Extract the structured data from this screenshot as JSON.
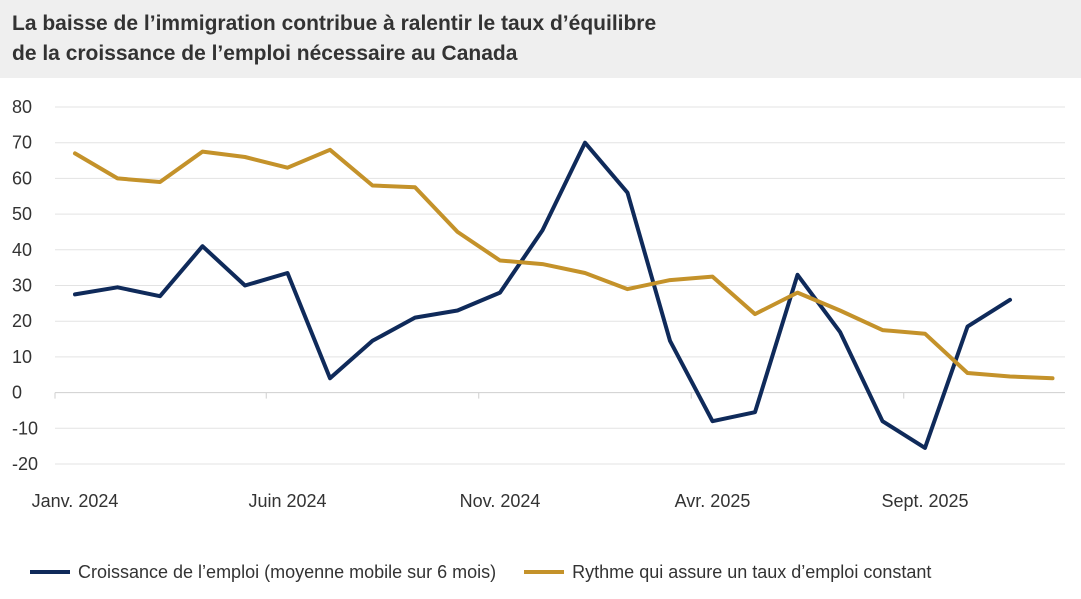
{
  "header": {
    "title_line1": "La baisse de l’immigration contribue à ralentir le taux d’équilibre",
    "title_line2": "de la croissance de l’emploi nécessaire au Canada"
  },
  "chart_data": {
    "type": "line",
    "title": "La baisse de l’immigration contribue à ralentir le taux d’équilibre de la croissance de l’emploi nécessaire au Canada",
    "xlabel": "",
    "ylabel": "",
    "ylim": [
      -20,
      80
    ],
    "yticks": [
      80,
      70,
      60,
      50,
      40,
      30,
      20,
      10,
      0,
      -10,
      -20
    ],
    "ytick_labels": [
      "80",
      "70",
      "60",
      "50",
      "40",
      "30",
      "20",
      "10",
      "0",
      "-10",
      "-20"
    ],
    "grid": true,
    "legend_position": "bottom",
    "categories": [
      "2024-01",
      "2024-02",
      "2024-03",
      "2024-04",
      "2024-05",
      "2024-06",
      "2024-07",
      "2024-08",
      "2024-09",
      "2024-10",
      "2024-11",
      "2024-12",
      "2025-01",
      "2025-02",
      "2025-03",
      "2025-04",
      "2025-05",
      "2025-06",
      "2025-07",
      "2025-08",
      "2025-09",
      "2025-10",
      "2025-11",
      "2025-12",
      "2026-01"
    ],
    "xtick_labels": [
      {
        "index": 0,
        "label": "Janv. 2024"
      },
      {
        "index": 5,
        "label": "Juin 2024"
      },
      {
        "index": 10,
        "label": "Nov. 2024"
      },
      {
        "index": 15,
        "label": "Avr. 2025"
      },
      {
        "index": 20,
        "label": "Sept. 2025"
      }
    ],
    "series": [
      {
        "name": "Croissance de l’emploi (moyenne mobile sur 6 mois)",
        "color": "#0f2a5a",
        "values": [
          27.5,
          29.5,
          27,
          41,
          30,
          33.5,
          4,
          14.5,
          21,
          23,
          28,
          45.5,
          70,
          56,
          14.5,
          -8,
          -5.5,
          33,
          17,
          -8,
          -15.5,
          18.5,
          26,
          null,
          null
        ]
      },
      {
        "name": "Rythme qui assure un taux d’emploi constant",
        "color": "#c4922a",
        "values": [
          67,
          60,
          59,
          67.5,
          66,
          63,
          68,
          58,
          57.5,
          45,
          37,
          36,
          33.5,
          29,
          31.5,
          32.5,
          22,
          28,
          23,
          17.5,
          16.5,
          5.5,
          4.5,
          4,
          null
        ]
      }
    ]
  }
}
